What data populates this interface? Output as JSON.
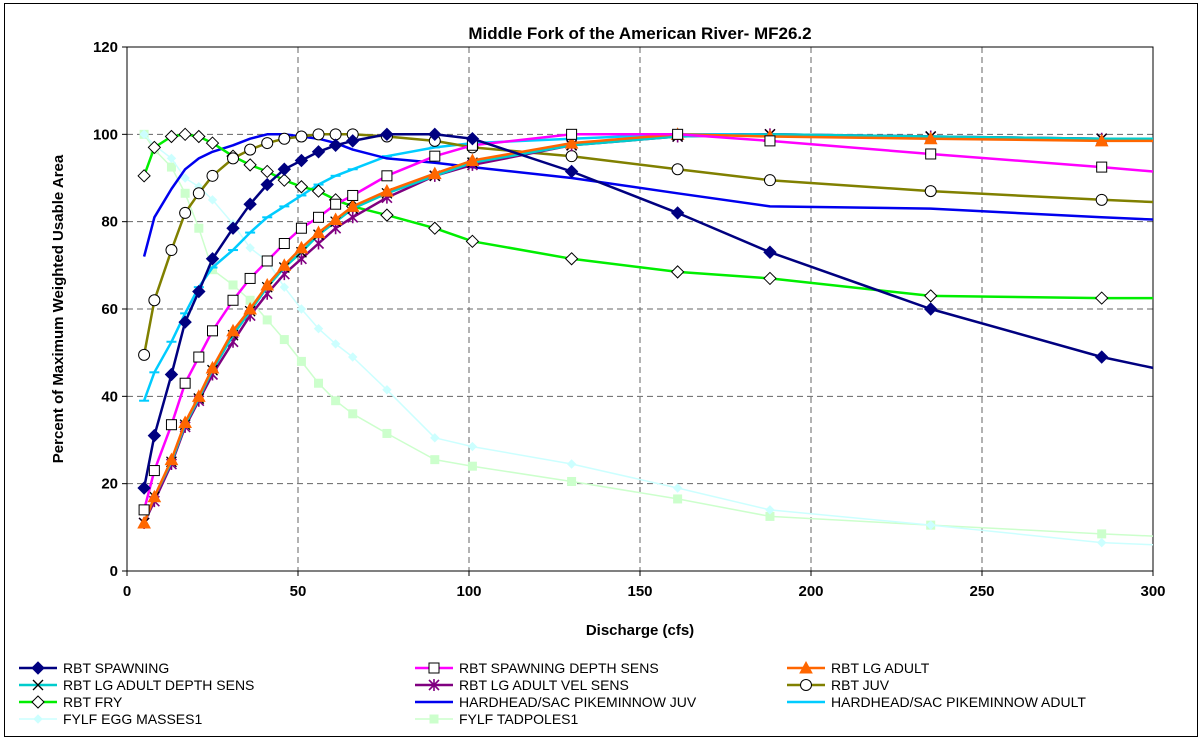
{
  "chart_data": {
    "type": "line",
    "title": "Middle Fork of the American River- MF26.2",
    "xlabel": "Discharge (cfs)",
    "ylabel": "Percent of Maximum Weighted Usable Area",
    "xlim": [
      0,
      300
    ],
    "ylim": [
      0,
      120
    ],
    "x_ticks": [
      "0",
      "50",
      "100",
      "150",
      "200",
      "250",
      "300"
    ],
    "y_ticks": [
      "0",
      "20",
      "40",
      "60",
      "80",
      "100",
      "120"
    ],
    "grid": true,
    "legend_position": "bottom",
    "series": [
      {
        "name": "RBT SPAWNING",
        "color": "#000080",
        "marker": "diamond-filled",
        "x": [
          5,
          8,
          13,
          17,
          21,
          25,
          31,
          36,
          41,
          46,
          51,
          56,
          61,
          66,
          76,
          90,
          101,
          130,
          161,
          188,
          235,
          285,
          300
        ],
        "y": [
          19,
          31,
          45,
          57,
          64,
          71.5,
          78.5,
          84,
          88.5,
          92,
          94,
          96,
          97.5,
          98.5,
          100,
          100,
          99,
          91.5,
          82,
          73,
          60,
          49,
          46.5
        ]
      },
      {
        "name": "RBT SPAWNING DEPTH SENS",
        "color": "#FF00FF",
        "marker": "square-open",
        "x": [
          5,
          8,
          13,
          17,
          21,
          25,
          31,
          36,
          41,
          46,
          51,
          56,
          61,
          66,
          76,
          90,
          101,
          130,
          161,
          188,
          235,
          285,
          300
        ],
        "y": [
          14,
          23,
          33.5,
          43,
          49,
          55,
          62,
          67,
          71,
          75,
          78.5,
          81,
          84,
          86,
          90.5,
          95,
          97.5,
          100,
          100,
          98.5,
          95.5,
          92.5,
          91.5
        ]
      },
      {
        "name": "RBT LG ADULT",
        "color": "#FF6600",
        "marker": "triangle-filled",
        "x": [
          5,
          8,
          13,
          17,
          21,
          25,
          31,
          36,
          41,
          46,
          51,
          56,
          61,
          66,
          76,
          90,
          101,
          130,
          161,
          188,
          235,
          285,
          300
        ],
        "y": [
          11,
          17,
          25.5,
          34,
          40,
          46.5,
          55,
          60,
          65.5,
          70,
          74,
          77.5,
          80.5,
          83.5,
          87,
          91,
          94,
          98,
          100,
          99.5,
          99,
          98.5,
          98.5
        ]
      },
      {
        "name": "RBT LG ADULT DEPTH SENS",
        "color": "#00CCCC",
        "marker": "x",
        "x": [
          5,
          8,
          13,
          17,
          21,
          25,
          31,
          36,
          41,
          46,
          51,
          56,
          61,
          66,
          76,
          90,
          101,
          130,
          161,
          188,
          235,
          285,
          300
        ],
        "y": [
          11,
          17,
          25,
          33.5,
          39.5,
          46,
          54,
          59.5,
          65,
          69.5,
          73,
          77,
          80,
          83,
          86.5,
          90.5,
          93.5,
          97.5,
          99.5,
          100,
          99.5,
          99,
          99
        ]
      },
      {
        "name": "RBT LG ADULT VEL SENS",
        "color": "#800080",
        "marker": "star",
        "x": [
          5,
          8,
          13,
          17,
          21,
          25,
          31,
          36,
          41,
          46,
          51,
          56,
          61,
          66,
          76,
          90,
          101,
          130,
          161,
          188,
          235,
          285,
          300
        ],
        "y": [
          11,
          16,
          24.5,
          33,
          39,
          45,
          52.5,
          58.5,
          63.5,
          68,
          71.5,
          75,
          78.5,
          81,
          85.5,
          90.5,
          93,
          97.5,
          99.5,
          100,
          99.5,
          99,
          98.5
        ]
      },
      {
        "name": "RBT JUV",
        "color": "#808000",
        "marker": "circle-open",
        "x": [
          5,
          8,
          13,
          17,
          21,
          25,
          31,
          36,
          41,
          46,
          51,
          56,
          61,
          66,
          76,
          90,
          101,
          130,
          161,
          188,
          235,
          285,
          300
        ],
        "y": [
          49.5,
          62,
          73.5,
          82,
          86.5,
          90.5,
          94.5,
          96.5,
          98,
          99,
          99.5,
          100,
          100,
          100,
          99.5,
          98.5,
          97,
          95,
          92,
          89.5,
          87,
          85,
          84.5
        ]
      },
      {
        "name": "RBT FRY",
        "color": "#00EE00",
        "marker": "diamond-open",
        "x": [
          5,
          8,
          13,
          17,
          21,
          25,
          31,
          36,
          41,
          46,
          51,
          56,
          61,
          66,
          76,
          90,
          101,
          130,
          161,
          188,
          235,
          285,
          300
        ],
        "y": [
          90.5,
          97,
          99.5,
          100,
          99.5,
          98,
          95,
          93,
          91.5,
          89.5,
          88,
          87,
          85,
          83.5,
          81.5,
          78.5,
          75.5,
          71.5,
          68.5,
          67,
          63,
          62.5,
          62.5
        ]
      },
      {
        "name": "HARDHEAD/SAC PIKEMINNOW JUV",
        "color": "#0000EE",
        "marker": "none",
        "x": [
          5,
          8,
          13,
          17,
          21,
          25,
          31,
          36,
          41,
          46,
          51,
          56,
          61,
          66,
          76,
          90,
          101,
          130,
          161,
          188,
          235,
          285,
          300
        ],
        "y": [
          72,
          81,
          87.5,
          92,
          94.5,
          96,
          97.5,
          99,
          100,
          100,
          99.5,
          99,
          98,
          96.5,
          94.5,
          93.5,
          92.5,
          90,
          86.5,
          83.5,
          83,
          81,
          80.5
        ]
      },
      {
        "name": "HARDHEAD/SAC PIKEMINNOW ADULT",
        "color": "#00CCFF",
        "marker": "dash",
        "x": [
          5,
          8,
          13,
          17,
          21,
          25,
          31,
          36,
          41,
          46,
          51,
          56,
          61,
          66,
          76,
          90,
          101,
          130,
          161,
          188,
          235,
          285,
          300
        ],
        "y": [
          39,
          45.5,
          52.5,
          59,
          65,
          69.5,
          73.5,
          77.5,
          81,
          83.5,
          86,
          88.5,
          90.5,
          92,
          95,
          97,
          98,
          99,
          100,
          100,
          99.5,
          99,
          99
        ]
      },
      {
        "name": "FYLF EGG MASSES1",
        "color": "#CCFFFF",
        "marker": "diamond-small",
        "x": [
          5,
          8,
          13,
          17,
          21,
          25,
          31,
          36,
          41,
          46,
          51,
          56,
          61,
          66,
          76,
          90,
          101,
          130,
          161,
          188,
          235,
          285,
          300
        ],
        "y": [
          100,
          97.5,
          94.5,
          90,
          88,
          85,
          79.5,
          74,
          71,
          65,
          60,
          55.5,
          52,
          49,
          41.5,
          30.5,
          28.5,
          24.5,
          19,
          14,
          10.5,
          6.5,
          6
        ]
      },
      {
        "name": "FYLF TADPOLES1",
        "color": "#CCFFCC",
        "marker": "square-small",
        "x": [
          5,
          8,
          13,
          17,
          21,
          25,
          31,
          36,
          41,
          46,
          51,
          56,
          61,
          66,
          76,
          90,
          101,
          130,
          161,
          188,
          235,
          285,
          300
        ],
        "y": [
          100,
          96.5,
          92.5,
          86.5,
          78.5,
          69,
          65.5,
          62,
          57.5,
          53,
          48,
          43,
          39,
          36,
          31.5,
          25.5,
          24,
          20.5,
          16.5,
          12.5,
          10.5,
          8.5,
          8
        ]
      }
    ]
  }
}
